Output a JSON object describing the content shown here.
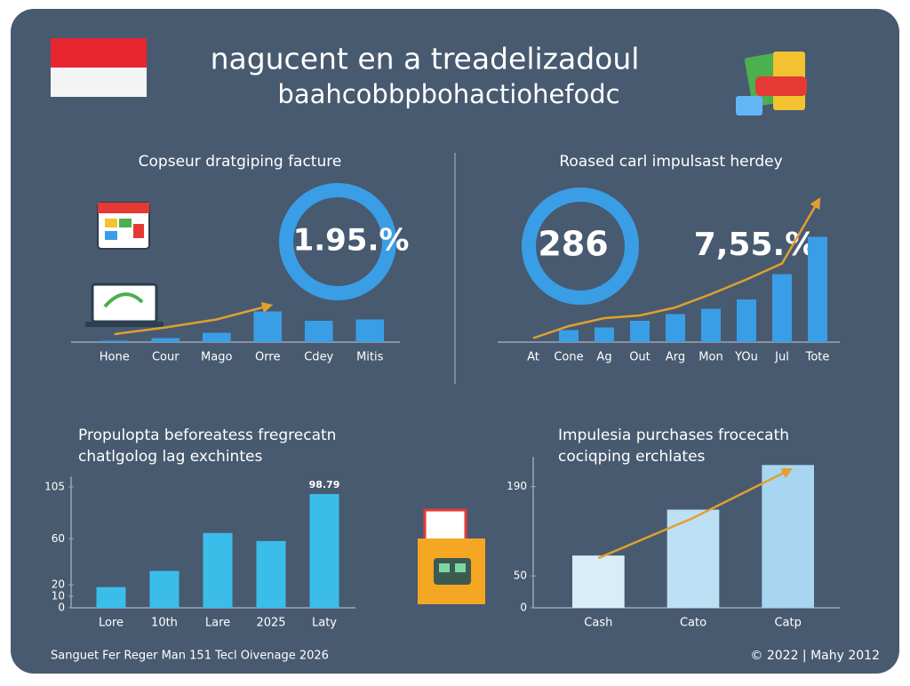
{
  "header": {
    "title": "nagucent en a treadelizadoul",
    "subtitle": "baahcobbpbohactiohefodc"
  },
  "footer": {
    "left": "Sanguet Fer Reger Man 151 Tecl Oivenage 2026",
    "right": "© 2022 | Mahy 2012"
  },
  "chart_data": [
    {
      "type": "bar",
      "title": "Copseur dratgiping facture",
      "annotations": [
        "1.95.%"
      ],
      "categories": [
        "Hone",
        "Cour",
        "Mago",
        "Orre",
        "Cdey",
        "Mitis"
      ],
      "series": [
        {
          "type": "bar",
          "color": "#3a9ee6",
          "values": [
            1,
            3,
            7,
            23,
            16,
            17
          ]
        },
        {
          "type": "line",
          "color": "#e0a030",
          "values": [
            6,
            11,
            17,
            27,
            null,
            null
          ]
        }
      ],
      "ylim": [
        0,
        100
      ]
    },
    {
      "type": "bar",
      "title": "Roased carl impulsast herdey",
      "annotations": [
        "286",
        "7,55.%"
      ],
      "categories": [
        "At",
        "Cone",
        "Ag",
        "Out",
        "Arg",
        "Mon",
        "YOu",
        "Jul",
        "Tote"
      ],
      "series": [
        {
          "type": "bar",
          "color": "#3a9ee6",
          "values": [
            null,
            9,
            11,
            16,
            21,
            25,
            32,
            51,
            79
          ]
        },
        {
          "type": "line",
          "color": "#e0a030",
          "values": [
            3,
            12,
            18,
            20,
            26,
            36,
            47,
            59,
            105
          ]
        }
      ],
      "ylim": [
        0,
        100
      ]
    },
    {
      "type": "bar",
      "title": "Propulopta beforeatess fregrecatn",
      "subtitle": "chatlgolog lag exchintes",
      "categories": [
        "Lore",
        "10th",
        "Lare",
        "2025",
        "Laty"
      ],
      "series": [
        {
          "type": "bar",
          "color": "#3bbde9",
          "values": [
            18,
            32,
            65,
            58,
            98.79
          ],
          "value_labels": [
            null,
            null,
            null,
            null,
            "98.79"
          ]
        }
      ],
      "ylim": [
        0,
        110
      ],
      "yticks": [
        0,
        10,
        20,
        60,
        105
      ],
      "grid": false
    },
    {
      "type": "bar",
      "title": "Impulesia purchases frocecath",
      "subtitle": "cociqping erchlates",
      "categories": [
        "Cash",
        "Cato",
        "Catp"
      ],
      "series": [
        {
          "type": "bar",
          "colors": [
            "#d9edf8",
            "#bde0f4",
            "#a8d6f0"
          ],
          "values": [
            82,
            154,
            224
          ]
        },
        {
          "type": "line",
          "color": "#e0a030",
          "values": [
            78,
            141,
            215
          ]
        }
      ],
      "ylim": [
        0,
        230
      ],
      "yticks": [
        0,
        50,
        190
      ],
      "grid": false
    }
  ]
}
